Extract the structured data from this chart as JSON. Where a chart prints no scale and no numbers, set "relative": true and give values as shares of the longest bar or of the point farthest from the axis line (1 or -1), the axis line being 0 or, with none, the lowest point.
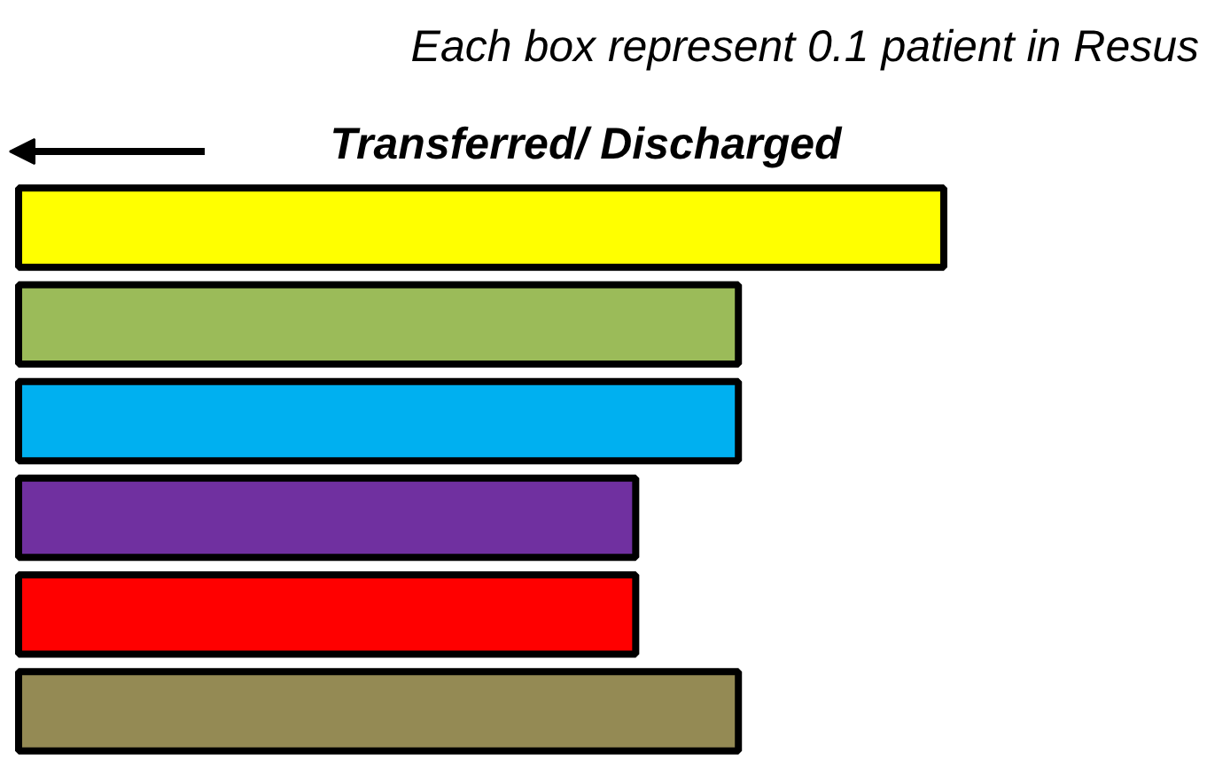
{
  "chart_data": {
    "type": "bar",
    "orientation": "horizontal",
    "relative": true,
    "title": "Each box represent 0.1 patient in Resus",
    "annotations": [
      "Transferred/ Discharged"
    ],
    "categories": [
      null,
      null,
      null,
      null,
      null,
      null
    ],
    "values": [
      1,
      0.778,
      0.778,
      0.667,
      0.667,
      0.778
    ],
    "colors": [
      "#ffff00",
      "#9bbb59",
      "#00b0f0",
      "#7030a0",
      "#ff0000",
      "#948a54"
    ],
    "grid": false
  }
}
